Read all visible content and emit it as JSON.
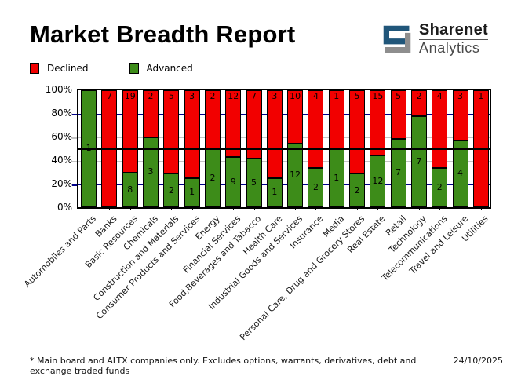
{
  "title": "Market Breadth Report",
  "logo": {
    "line1": "Sharenet",
    "line2": "Analytics",
    "blue": "#20567a",
    "gray": "#8e8e8e"
  },
  "legend": [
    {
      "label": "Declined",
      "color": "#f20000"
    },
    {
      "label": "Advanced",
      "color": "#3d8c19"
    }
  ],
  "footer": {
    "note": "* Main board and ALTX companies only. Excludes options, warrants, derivatives, debt and exchange traded funds",
    "date": "24/10/2025"
  },
  "chart_data": {
    "type": "bar",
    "variant": "stacked-100-percent",
    "categories": [
      "Automobiles and Parts",
      "Banks",
      "Basic Resources",
      "Chemicals",
      "Construction and Materials",
      "Consumer Products and Services",
      "Energy",
      "Financial Services",
      "Food,Beverages and Tabacco",
      "Health Care",
      "Industrial Goods and Services",
      "Insurance",
      "Media",
      "Personal Care, Drug and Grocery Stores",
      "Real Estate",
      "Retail",
      "Technology",
      "Telecommunications",
      "Travel and Leisure",
      "Utilities"
    ],
    "series": [
      {
        "name": "Declined",
        "color": "#f20000",
        "values": [
          0,
          7,
          19,
          2,
          5,
          3,
          2,
          12,
          7,
          3,
          10,
          4,
          1,
          5,
          15,
          5,
          2,
          4,
          3,
          1
        ]
      },
      {
        "name": "Advanced",
        "color": "#3d8c19",
        "values": [
          1,
          0,
          8,
          3,
          2,
          1,
          2,
          9,
          5,
          1,
          12,
          2,
          1,
          2,
          12,
          7,
          7,
          2,
          4,
          0
        ]
      }
    ],
    "y_ticks": [
      "0%",
      "20%",
      "40%",
      "60%",
      "80%",
      "100%"
    ],
    "ylim": [
      0,
      100
    ],
    "grid": {
      "navy_levels": [
        20,
        80
      ],
      "gray_levels": [
        40,
        60
      ],
      "black_level": 50,
      "navy_color": "#00008b",
      "gray_color": "#c4c4c4"
    },
    "legend_position": "top-left",
    "xlabel": "",
    "ylabel": ""
  }
}
